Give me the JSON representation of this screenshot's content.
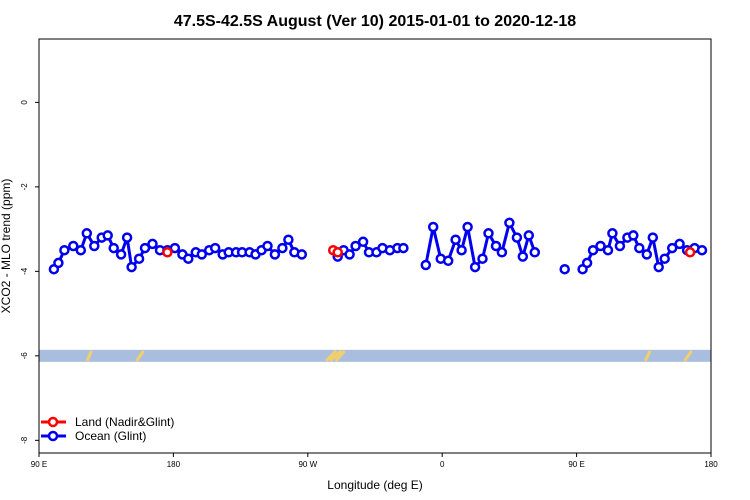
{
  "chart_data": {
    "type": "line",
    "title": "47.5S-42.5S August (Ver 10)   2015-01-01 to 2020-12-18",
    "xlabel": "Longitude (deg E)",
    "ylabel": "XCO2 - MLO trend (ppm)",
    "xlim": [
      90,
      540
    ],
    "ylim": [
      -8.3,
      1.5
    ],
    "x_ticks": [
      {
        "value": 90,
        "label": "90 E"
      },
      {
        "value": 180,
        "label": "180"
      },
      {
        "value": 270,
        "label": "90 W"
      },
      {
        "value": 360,
        "label": "0"
      },
      {
        "value": 450,
        "label": "90 E"
      },
      {
        "value": 540,
        "label": "180"
      }
    ],
    "y_ticks": [
      {
        "value": 0,
        "label": "0"
      },
      {
        "value": -2,
        "label": "-2"
      },
      {
        "value": -4,
        "label": "-4"
      },
      {
        "value": -6,
        "label": "-6"
      },
      {
        "value": -8,
        "label": "-8"
      }
    ],
    "legend": {
      "position": "bottom-left",
      "entries": [
        {
          "label": "Land (Nadir&Glint)",
          "color": "#ff0000"
        },
        {
          "label": "Ocean (Glint)",
          "color": "#0000ee"
        }
      ]
    },
    "surface_strip": {
      "y": -6,
      "ocean_color": "#a9bedf",
      "land_color": "#f2cf6b"
    },
    "series": [
      {
        "name": "Land (Nadir&Glint)",
        "color": "#ff0000",
        "segments": [
          [
            [
              176,
              -3.55
            ]
          ],
          [
            [
              287,
              -3.5
            ],
            [
              290,
              -3.55
            ]
          ],
          [
            [
              526,
              -3.55
            ]
          ]
        ]
      },
      {
        "name": "Ocean (Glint)",
        "color": "#0000ee",
        "segments": [
          [
            [
              100,
              -3.95
            ],
            [
              103,
              -3.8
            ],
            [
              107,
              -3.5
            ],
            [
              113,
              -3.4
            ],
            [
              118,
              -3.5
            ],
            [
              122,
              -3.1
            ],
            [
              127,
              -3.4
            ],
            [
              132,
              -3.2
            ],
            [
              136,
              -3.15
            ],
            [
              140,
              -3.45
            ],
            [
              145,
              -3.6
            ],
            [
              149,
              -3.2
            ],
            [
              152,
              -3.9
            ],
            [
              157,
              -3.7
            ],
            [
              161,
              -3.45
            ],
            [
              166,
              -3.35
            ],
            [
              171,
              -3.5
            ],
            [
              176,
              -3.5
            ],
            [
              181,
              -3.45
            ],
            [
              186,
              -3.6
            ],
            [
              190,
              -3.7
            ],
            [
              195,
              -3.55
            ],
            [
              199,
              -3.6
            ],
            [
              204,
              -3.5
            ],
            [
              208,
              -3.45
            ],
            [
              213,
              -3.6
            ],
            [
              217,
              -3.55
            ],
            [
              222,
              -3.55
            ],
            [
              226,
              -3.55
            ],
            [
              231,
              -3.55
            ],
            [
              235,
              -3.6
            ],
            [
              239,
              -3.5
            ],
            [
              243,
              -3.4
            ],
            [
              248,
              -3.6
            ],
            [
              253,
              -3.45
            ],
            [
              257,
              -3.25
            ],
            [
              261,
              -3.55
            ],
            [
              266,
              -3.6
            ]
          ],
          [
            [
              290,
              -3.65
            ],
            [
              294,
              -3.5
            ],
            [
              298,
              -3.6
            ],
            [
              302,
              -3.4
            ],
            [
              307,
              -3.3
            ],
            [
              311,
              -3.55
            ],
            [
              316,
              -3.55
            ],
            [
              320,
              -3.45
            ],
            [
              325,
              -3.5
            ],
            [
              330,
              -3.45
            ],
            [
              334,
              -3.45
            ]
          ],
          [
            [
              349,
              -3.85
            ],
            [
              354,
              -2.95
            ],
            [
              359,
              -3.7
            ],
            [
              364,
              -3.75
            ],
            [
              369,
              -3.25
            ],
            [
              373,
              -3.5
            ],
            [
              377,
              -2.95
            ],
            [
              382,
              -3.9
            ],
            [
              387,
              -3.7
            ],
            [
              391,
              -3.1
            ],
            [
              396,
              -3.4
            ],
            [
              400,
              -3.55
            ],
            [
              405,
              -2.85
            ],
            [
              410,
              -3.2
            ],
            [
              414,
              -3.65
            ],
            [
              418,
              -3.15
            ],
            [
              422,
              -3.55
            ]
          ],
          [
            [
              442,
              -3.95
            ]
          ],
          [
            [
              454,
              -3.95
            ],
            [
              457,
              -3.8
            ],
            [
              461,
              -3.5
            ],
            [
              466,
              -3.4
            ],
            [
              471,
              -3.5
            ],
            [
              474,
              -3.1
            ],
            [
              479,
              -3.4
            ],
            [
              484,
              -3.2
            ],
            [
              488,
              -3.15
            ],
            [
              492,
              -3.45
            ],
            [
              497,
              -3.6
            ],
            [
              501,
              -3.2
            ],
            [
              505,
              -3.9
            ],
            [
              509,
              -3.7
            ],
            [
              514,
              -3.45
            ],
            [
              519,
              -3.35
            ],
            [
              524,
              -3.5
            ],
            [
              529,
              -3.45
            ],
            [
              534,
              -3.5
            ]
          ]
        ]
      }
    ]
  }
}
